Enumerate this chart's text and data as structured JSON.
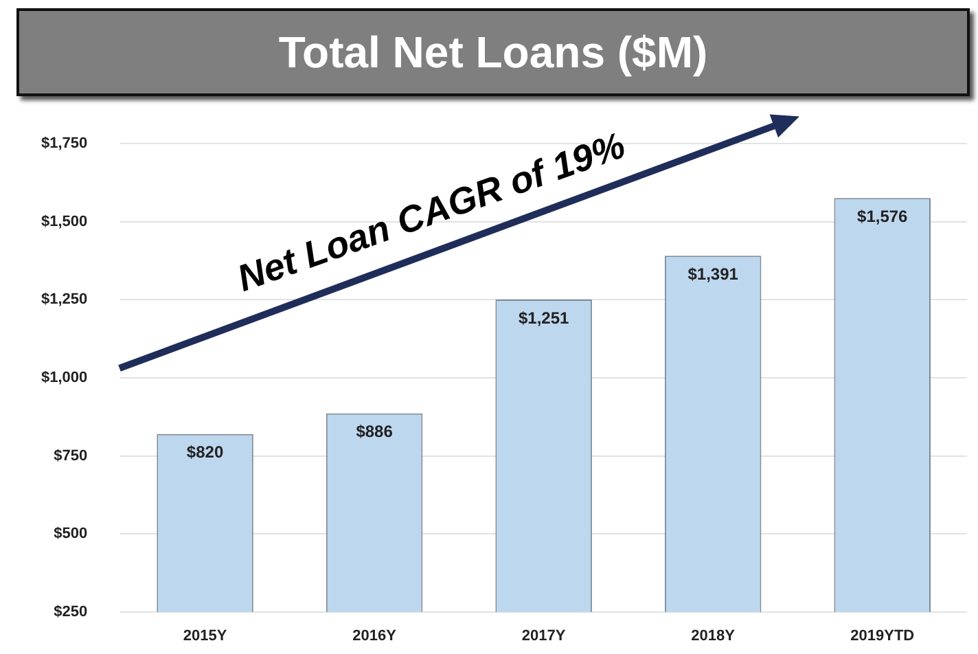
{
  "chart_data": {
    "type": "bar",
    "title": "Total Net Loans ($M)",
    "categories": [
      "2015Y",
      "2016Y",
      "2017Y",
      "2018Y",
      "2019YTD"
    ],
    "values": [
      820,
      886,
      1251,
      1391,
      1576
    ],
    "value_labels": [
      "$820",
      "$886",
      "$1,251",
      "$1,391",
      "$1,576"
    ],
    "color": "#bdd7ee",
    "ylim": [
      250,
      1750
    ],
    "yticks": [
      {
        "value": 250,
        "label": "$250"
      },
      {
        "value": 500,
        "label": "$500"
      },
      {
        "value": 750,
        "label": "$750"
      },
      {
        "value": 1000,
        "label": "$1,000"
      },
      {
        "value": 1250,
        "label": "$1,250"
      },
      {
        "value": 1500,
        "label": "$1,500"
      },
      {
        "value": 1750,
        "label": "$1,750"
      }
    ],
    "grid": "y",
    "annotations": [
      "Net Loan CAGR of 19%"
    ]
  }
}
